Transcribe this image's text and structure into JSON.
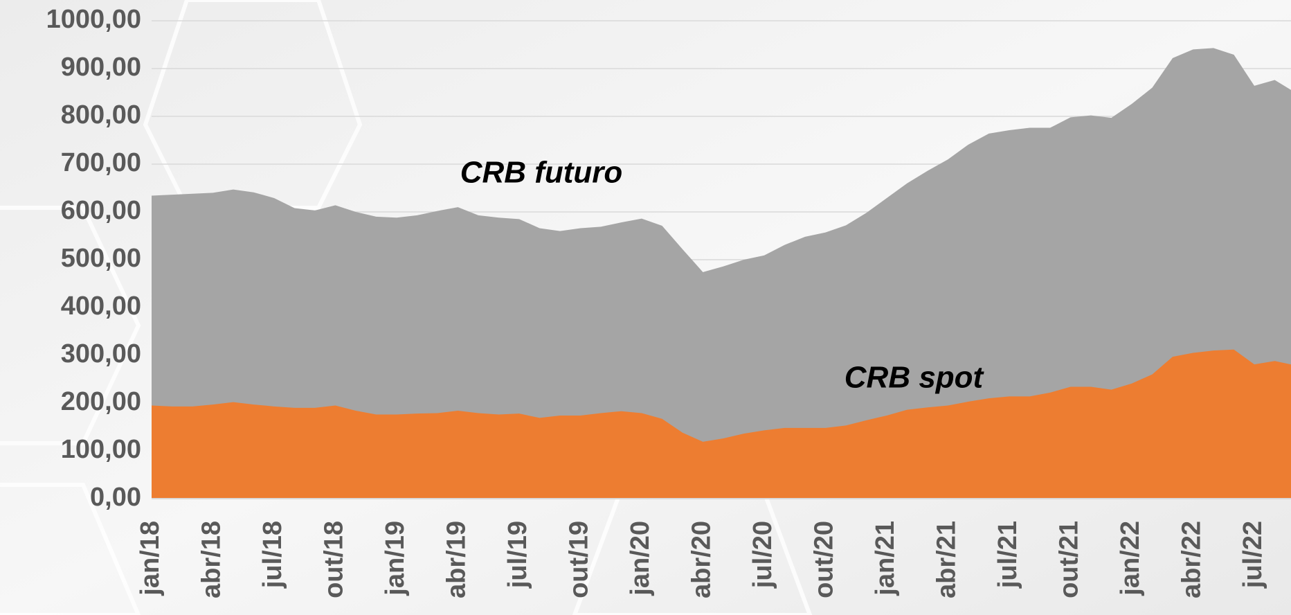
{
  "chart_data": {
    "type": "area",
    "categories": [
      "jan/18",
      null,
      null,
      "abr/18",
      null,
      null,
      "jul/18",
      null,
      null,
      "out/18",
      null,
      null,
      "jan/19",
      null,
      null,
      "abr/19",
      null,
      null,
      "jul/19",
      null,
      null,
      "out/19",
      null,
      null,
      "jan/20",
      null,
      null,
      "abr/20",
      null,
      null,
      "jul/20",
      null,
      null,
      "out/20",
      null,
      null,
      "jan/21",
      null,
      null,
      "abr/21",
      null,
      null,
      "jul/21",
      null,
      null,
      "out/21",
      null,
      null,
      "jan/22",
      null,
      null,
      "abr/22",
      null,
      null,
      "jul/22",
      null,
      null
    ],
    "series": [
      {
        "name": "CRB futuro",
        "color": "#a5a5a5",
        "values": [
          634,
          636,
          638,
          640,
          647,
          641,
          629,
          608,
          603,
          614,
          600,
          590,
          588,
          593,
          602,
          610,
          593,
          588,
          585,
          566,
          560,
          566,
          569,
          578,
          586,
          571,
          522,
          474,
          486,
          500,
          509,
          531,
          548,
          557,
          572,
          598,
          629,
          660,
          686,
          710,
          741,
          764,
          771,
          776,
          776,
          798,
          802,
          797,
          826,
          860,
          922,
          940,
          943,
          929,
          864,
          876,
          850
        ]
      },
      {
        "name": "CRB spot",
        "color": "#ed7d31",
        "values": [
          195,
          193,
          193,
          197,
          202,
          197,
          193,
          190,
          190,
          195,
          184,
          176,
          176,
          178,
          179,
          184,
          179,
          176,
          178,
          169,
          174,
          174,
          179,
          183,
          179,
          167,
          138,
          119,
          126,
          136,
          143,
          148,
          148,
          148,
          153,
          164,
          174,
          186,
          191,
          195,
          203,
          210,
          214,
          214,
          222,
          234,
          234,
          228,
          241,
          260,
          297,
          305,
          310,
          312,
          281,
          288,
          279
        ]
      }
    ],
    "ylim": [
      0,
      1000
    ],
    "yticks": [
      {
        "value": 0,
        "label": "0,00"
      },
      {
        "value": 100,
        "label": "100,00"
      },
      {
        "value": 200,
        "label": "200,00"
      },
      {
        "value": 300,
        "label": "300,00"
      },
      {
        "value": 400,
        "label": "400,00"
      },
      {
        "value": 500,
        "label": "500,00"
      },
      {
        "value": 600,
        "label": "600,00"
      },
      {
        "value": 700,
        "label": "700,00"
      },
      {
        "value": 800,
        "label": "800,00"
      },
      {
        "value": 900,
        "label": "900,00"
      },
      {
        "value": 1000,
        "label": "1000,00"
      }
    ],
    "grid": true
  }
}
